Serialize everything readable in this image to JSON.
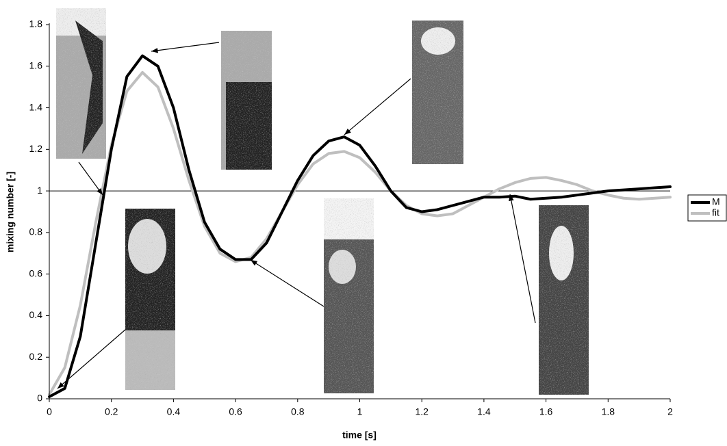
{
  "chart_data": {
    "type": "line",
    "x_label": "time [s]",
    "y_label": "mixing number [-]",
    "x": [
      0,
      0.05,
      0.1,
      0.15,
      0.2,
      0.25,
      0.3,
      0.35,
      0.4,
      0.45,
      0.5,
      0.55,
      0.6,
      0.65,
      0.7,
      0.75,
      0.8,
      0.85,
      0.9,
      0.95,
      1.0,
      1.05,
      1.1,
      1.15,
      1.2,
      1.25,
      1.3,
      1.35,
      1.4,
      1.45,
      1.5,
      1.55,
      1.6,
      1.65,
      1.7,
      1.75,
      1.8,
      1.85,
      1.9,
      1.95,
      2.0
    ],
    "series": [
      {
        "name": "M",
        "color": "#000000",
        "values": [
          0.01,
          0.05,
          0.3,
          0.75,
          1.2,
          1.55,
          1.65,
          1.6,
          1.4,
          1.1,
          0.85,
          0.72,
          0.67,
          0.67,
          0.75,
          0.9,
          1.05,
          1.17,
          1.24,
          1.26,
          1.22,
          1.12,
          1.0,
          0.92,
          0.9,
          0.91,
          0.93,
          0.95,
          0.97,
          0.97,
          0.975,
          0.96,
          0.965,
          0.97,
          0.98,
          0.99,
          1.0,
          1.005,
          1.01,
          1.015,
          1.02
        ]
      },
      {
        "name": "fit",
        "color": "#bfbfbf",
        "values": [
          0.02,
          0.15,
          0.45,
          0.85,
          1.22,
          1.48,
          1.57,
          1.5,
          1.3,
          1.05,
          0.83,
          0.7,
          0.66,
          0.68,
          0.77,
          0.9,
          1.03,
          1.13,
          1.18,
          1.19,
          1.16,
          1.09,
          1.0,
          0.93,
          0.89,
          0.88,
          0.89,
          0.93,
          0.97,
          1.01,
          1.04,
          1.06,
          1.065,
          1.05,
          1.03,
          1.0,
          0.98,
          0.965,
          0.96,
          0.965,
          0.97
        ]
      }
    ],
    "xlim": [
      0,
      2
    ],
    "xticks": [
      0,
      0.2,
      0.4,
      0.6,
      0.8,
      1,
      1.2,
      1.4,
      1.6,
      1.8,
      2
    ],
    "ylim": [
      0,
      1.8
    ],
    "yticks": [
      0,
      0.2,
      0.4,
      0.6,
      0.8,
      1,
      1.2,
      1.4,
      1.6,
      1.8
    ],
    "reference_line": 1,
    "grid": false,
    "legend": "right"
  }
}
